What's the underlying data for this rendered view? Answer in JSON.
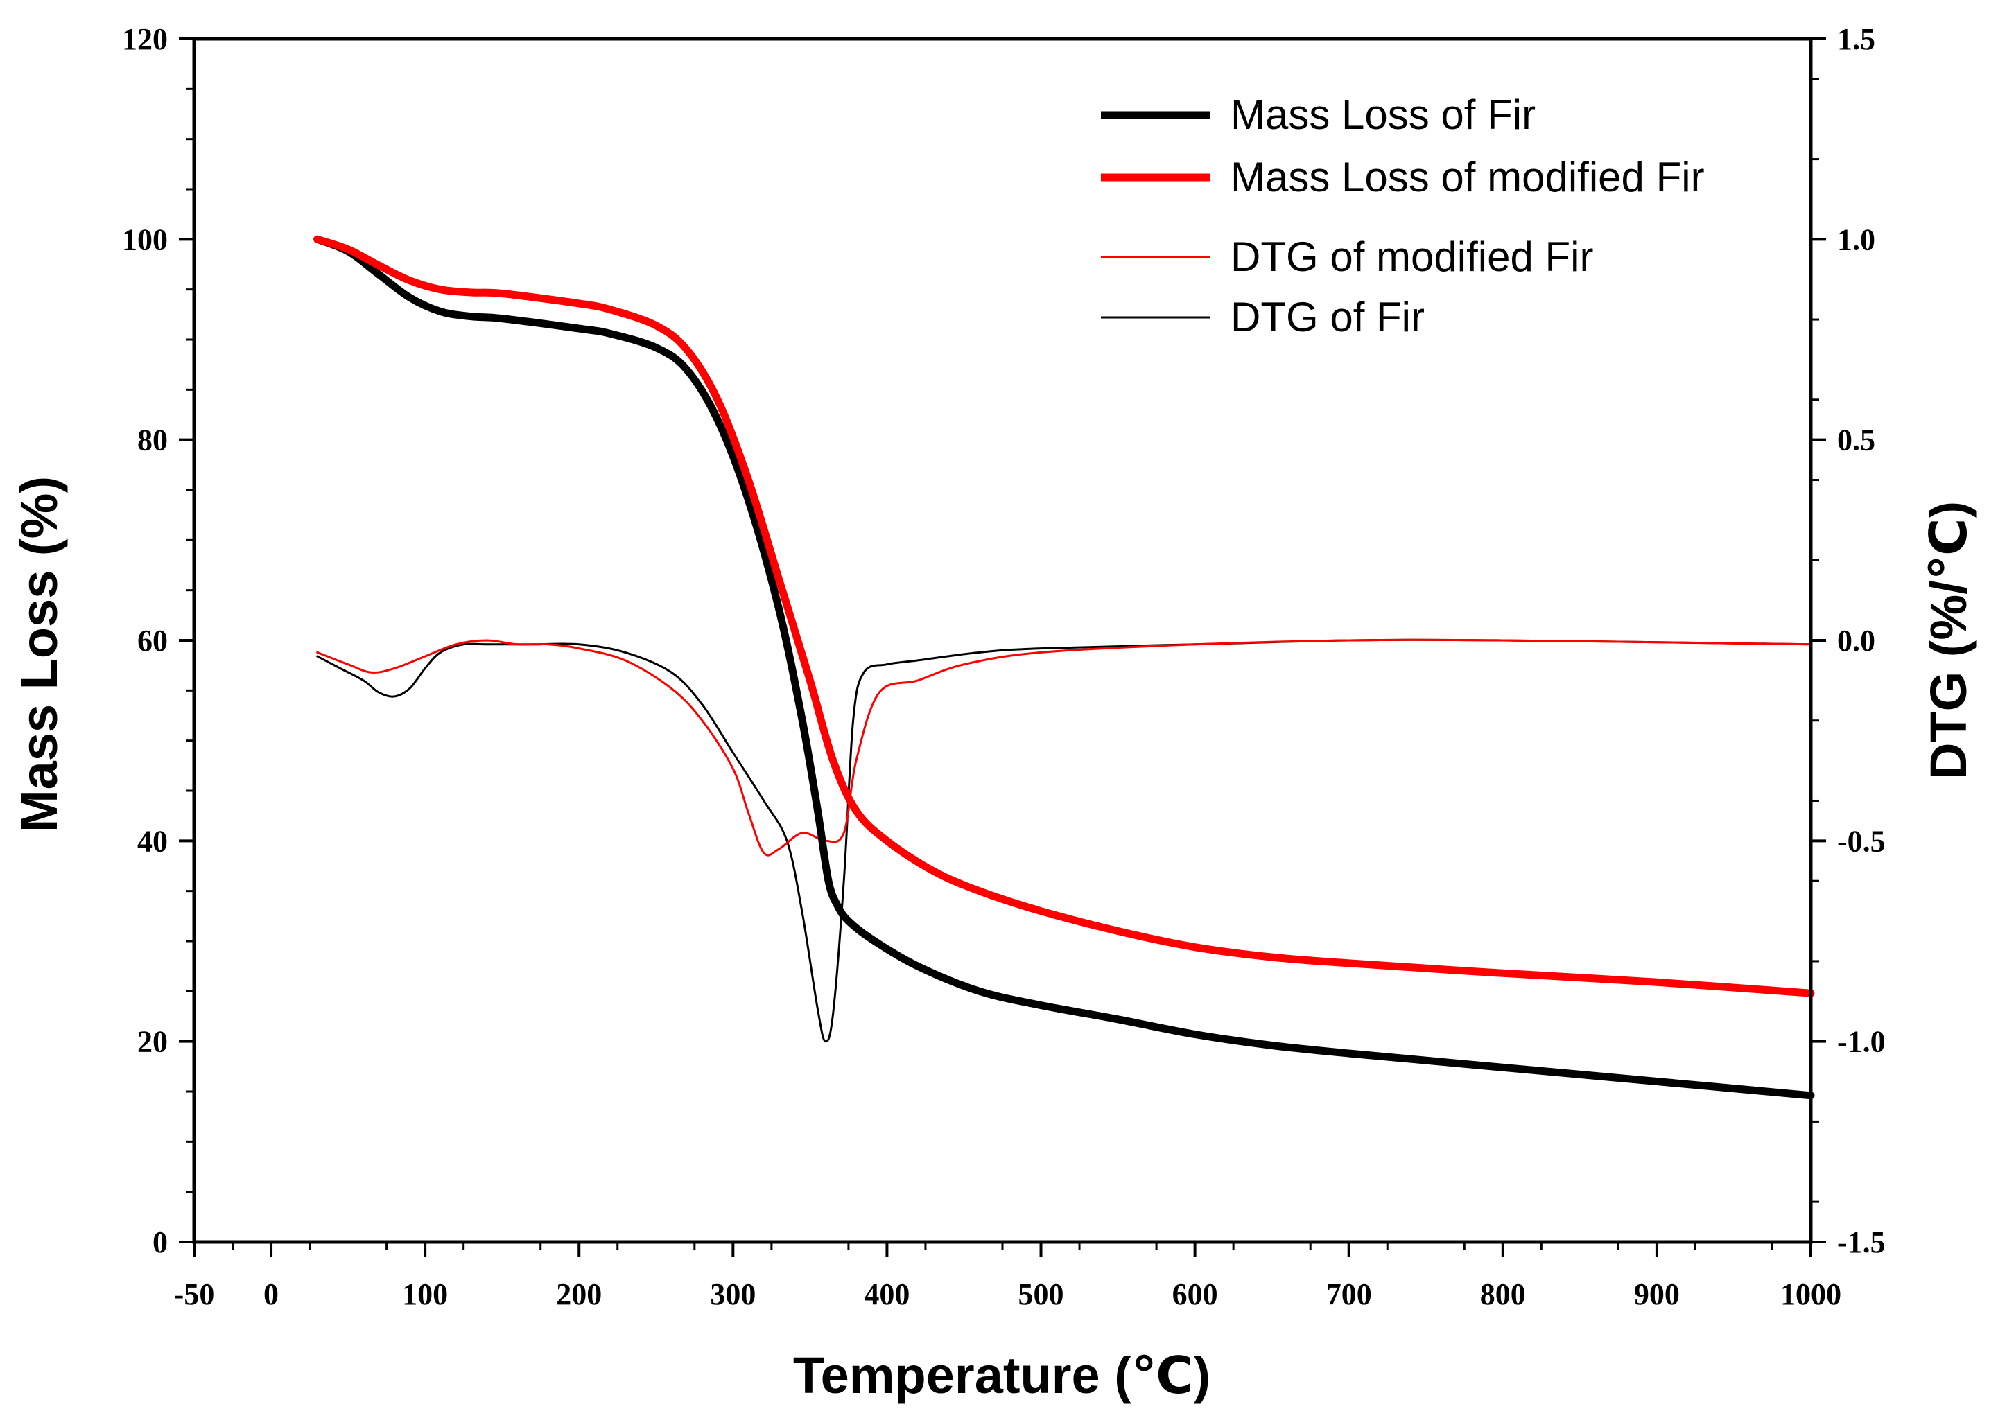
{
  "chart_data": {
    "type": "line",
    "title": "",
    "xlabel": "Temperature (℃)",
    "ylabel_left": "Mass Loss (%)",
    "ylabel_right": "DTG (%/℃)",
    "xlim": [
      -50,
      1000
    ],
    "ylim_left": [
      0,
      120
    ],
    "ylim_right": [
      -1.5,
      1.5
    ],
    "x_tick_labels": [
      "-50",
      "0",
      "100",
      "200",
      "300",
      "400",
      "500",
      "600",
      "700",
      "800",
      "900",
      "1000",
      "1000"
    ],
    "y_left_ticks": [
      0,
      20,
      40,
      60,
      80,
      100,
      120
    ],
    "y_left_tick_labels": [
      "0",
      "20",
      "40",
      "60",
      "80",
      "100",
      "120"
    ],
    "y_right_ticks": [
      -1.5,
      -1.0,
      -0.5,
      0.0,
      0.5,
      1.0,
      1.5
    ],
    "y_right_tick_labels": [
      "-1.5",
      "-1.0",
      "-0.5",
      "0.0",
      "0.5",
      "1.0",
      "1.5"
    ],
    "grid": false,
    "legend_position": "top-right",
    "series": [
      {
        "name": "Mass Loss of Fir",
        "axis": "left",
        "color": "#000000",
        "weight": "thick",
        "x": [
          30,
          50,
          70,
          90,
          110,
          130,
          150,
          200,
          220,
          250,
          270,
          290,
          310,
          330,
          345,
          355,
          362,
          368,
          375,
          390,
          420,
          460,
          500,
          550,
          600,
          650,
          700,
          800,
          900,
          1000
        ],
        "y": [
          100,
          98.8,
          96.5,
          94.2,
          92.8,
          92.3,
          92.1,
          91.1,
          90.6,
          89.2,
          87.0,
          82.0,
          74.0,
          63.0,
          52.0,
          43.0,
          36.0,
          33.5,
          32.0,
          30.2,
          27.5,
          25.0,
          23.6,
          22.2,
          20.7,
          19.6,
          18.8,
          17.4,
          16.0,
          14.6
        ]
      },
      {
        "name": "Mass Loss of modified Fir",
        "axis": "left",
        "color": "#ff0000",
        "weight": "thick",
        "x": [
          30,
          50,
          70,
          90,
          110,
          130,
          150,
          200,
          220,
          250,
          270,
          290,
          310,
          330,
          350,
          365,
          380,
          400,
          430,
          460,
          500,
          550,
          600,
          650,
          700,
          800,
          900,
          1000
        ],
        "y": [
          100,
          99.0,
          97.4,
          95.9,
          95.0,
          94.7,
          94.6,
          93.6,
          93.0,
          91.4,
          89.0,
          84.0,
          76.0,
          66.0,
          56.0,
          48.0,
          43.0,
          40.0,
          37.0,
          35.0,
          33.0,
          31.0,
          29.4,
          28.4,
          27.8,
          26.8,
          25.9,
          24.8
        ]
      },
      {
        "name": "DTG of modified Fir",
        "axis": "right",
        "color": "#ff0000",
        "weight": "thin",
        "x": [
          30,
          50,
          65,
          80,
          100,
          120,
          140,
          160,
          180,
          200,
          230,
          260,
          280,
          300,
          310,
          320,
          330,
          345,
          360,
          372,
          380,
          395,
          420,
          450,
          500,
          600,
          700,
          800,
          1000
        ],
        "y": [
          -0.03,
          -0.06,
          -0.08,
          -0.07,
          -0.04,
          -0.01,
          0.0,
          -0.01,
          -0.01,
          -0.02,
          -0.05,
          -0.12,
          -0.2,
          -0.32,
          -0.43,
          -0.53,
          -0.52,
          -0.48,
          -0.5,
          -0.48,
          -0.3,
          -0.13,
          -0.1,
          -0.06,
          -0.03,
          -0.01,
          0.0,
          0.0,
          -0.01
        ]
      },
      {
        "name": "DTG of Fir",
        "axis": "right",
        "color": "#000000",
        "weight": "thin",
        "x": [
          30,
          45,
          60,
          70,
          80,
          90,
          100,
          110,
          125,
          140,
          170,
          200,
          230,
          260,
          280,
          300,
          320,
          335,
          345,
          355,
          360,
          365,
          372,
          378,
          385,
          400,
          420,
          460,
          500,
          600,
          700,
          800,
          1000
        ],
        "y": [
          -0.04,
          -0.07,
          -0.1,
          -0.13,
          -0.14,
          -0.12,
          -0.07,
          -0.03,
          -0.01,
          -0.01,
          -0.01,
          -0.01,
          -0.03,
          -0.08,
          -0.16,
          -0.28,
          -0.4,
          -0.5,
          -0.68,
          -0.92,
          -1.0,
          -0.93,
          -0.6,
          -0.2,
          -0.08,
          -0.06,
          -0.05,
          -0.03,
          -0.02,
          -0.01,
          0.0,
          0.0,
          -0.01
        ]
      }
    ]
  }
}
